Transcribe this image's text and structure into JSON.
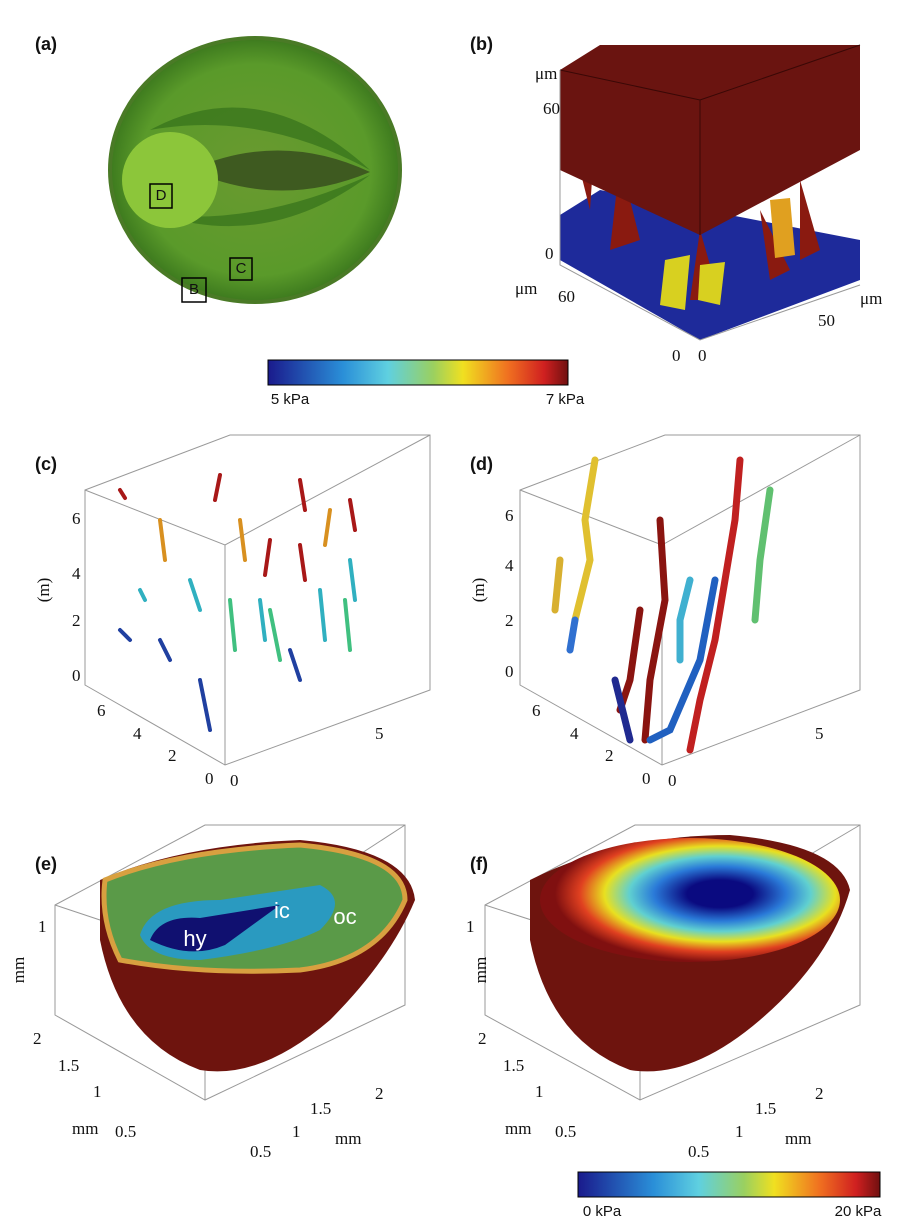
{
  "panels": [
    {
      "label": "(a)",
      "texts": [
        "D",
        "C",
        "B"
      ]
    },
    {
      "label": "(b)",
      "texts": [
        "μm",
        "60",
        "0",
        "μm",
        "60",
        "50",
        "μm",
        "0",
        "0"
      ]
    },
    {
      "label": "(c)",
      "texts": [
        "(m)",
        "6",
        "4",
        "2",
        "0",
        "6",
        "4",
        "2",
        "0",
        "0",
        "5"
      ]
    },
    {
      "label": "(d)",
      "texts": [
        "(m)",
        "6",
        "4",
        "2",
        "0",
        "6",
        "4",
        "2",
        "0",
        "0",
        "5"
      ]
    },
    {
      "label": "(e)",
      "texts": [
        "1",
        "mm",
        "2",
        "1.5",
        "1",
        "0.5",
        "mm",
        "0.5",
        "1",
        "1.5",
        "mm",
        "2",
        "hy",
        "ic",
        "oc"
      ]
    },
    {
      "label": "(f)",
      "texts": [
        "1",
        "mm",
        "2",
        "1.5",
        "1",
        "0.5",
        "mm",
        "0.5",
        "1",
        "1.5",
        "mm",
        "2"
      ]
    }
  ],
  "colorbars": [
    {
      "min_label": "5 kPa",
      "max_label": "7 kPa"
    },
    {
      "min_label": "0 kPa",
      "max_label": "20 kPa"
    }
  ]
}
